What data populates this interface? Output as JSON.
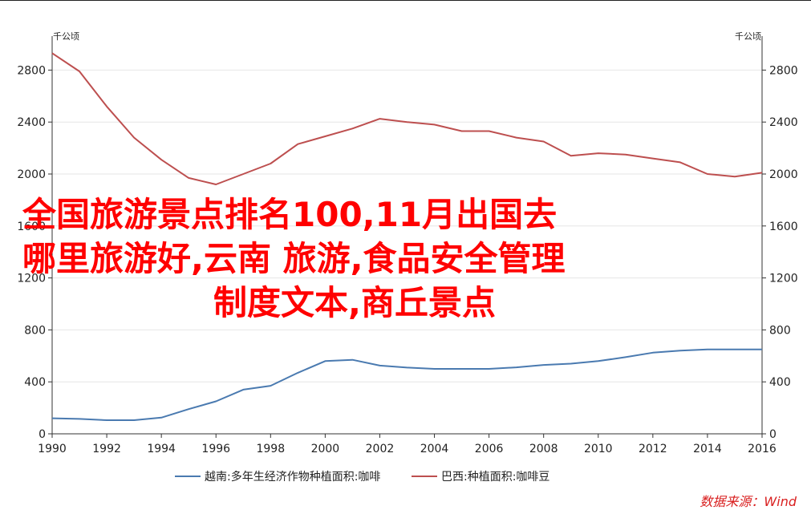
{
  "chart_data": {
    "type": "line",
    "x": [
      1990,
      1991,
      1992,
      1993,
      1994,
      1995,
      1996,
      1997,
      1998,
      1999,
      2000,
      2001,
      2002,
      2003,
      2004,
      2005,
      2006,
      2007,
      2008,
      2009,
      2010,
      2011,
      2012,
      2013,
      2014,
      2015,
      2016
    ],
    "series": [
      {
        "name": "越南:多年生经济作物种植面积:咖啡",
        "color": "#4a7ab0",
        "axis": "left",
        "values": [
          120,
          115,
          105,
          105,
          125,
          190,
          250,
          340,
          370,
          470,
          560,
          570,
          525,
          510,
          500,
          500,
          500,
          512,
          530,
          540,
          560,
          590,
          625,
          640,
          650,
          650,
          650
        ]
      },
      {
        "name": "巴西:种植面积:咖啡豆",
        "color": "#bd4f4f",
        "axis": "right",
        "values": [
          2930,
          2790,
          2520,
          2280,
          2110,
          1970,
          1920,
          2000,
          2080,
          2230,
          2290,
          2350,
          2425,
          2400,
          2380,
          2330,
          2330,
          2280,
          2250,
          2140,
          2160,
          2150,
          2120,
          2090,
          2000,
          1980,
          2010
        ]
      }
    ],
    "left_unit": "千公顷",
    "right_unit": "千公顷",
    "y_ticks": [
      0,
      400,
      800,
      1200,
      1600,
      2000,
      2400,
      2800
    ],
    "x_ticks": [
      1990,
      1992,
      1994,
      1996,
      1998,
      2000,
      2002,
      2004,
      2006,
      2008,
      2010,
      2012,
      2014,
      2016
    ],
    "ylim": [
      0,
      3000
    ],
    "xlim": [
      1990,
      2016
    ],
    "grid": true,
    "legend_position": "bottom"
  },
  "overlay": {
    "line1": "全国旅游景点排名100,11月出国去",
    "line2": "哪里旅游好,云南 旅游,食品安全管理",
    "line3": "制度文本,商丘景点"
  },
  "source": "数据来源：Wind"
}
